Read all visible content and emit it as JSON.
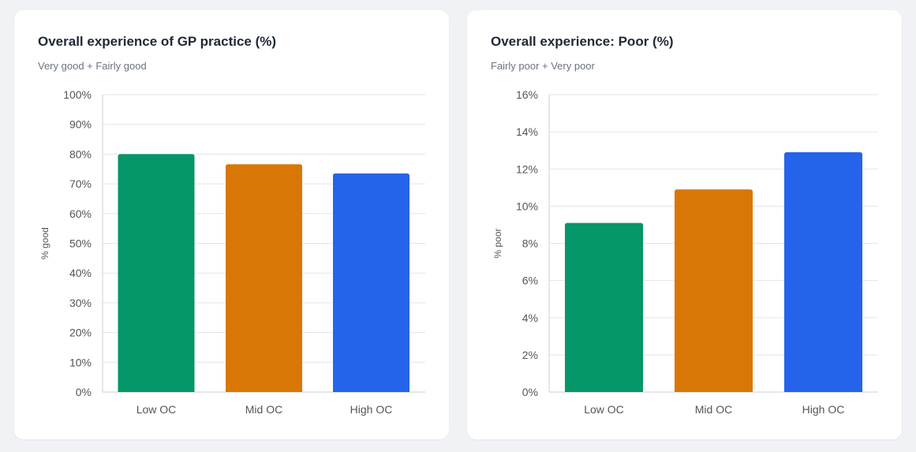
{
  "chart_data": [
    {
      "type": "bar",
      "title": "Overall experience of GP practice (%)",
      "subtitle": "Very good + Fairly good",
      "xlabel": "",
      "ylabel": "% good",
      "categories": [
        "Low OC",
        "Mid OC",
        "High OC"
      ],
      "values": [
        80,
        76.6,
        73.5
      ],
      "colors": [
        "#059669",
        "#d97706",
        "#2563eb"
      ],
      "ylim": [
        0,
        100
      ],
      "yticks": [
        0,
        10,
        20,
        30,
        40,
        50,
        60,
        70,
        80,
        90,
        100
      ],
      "tick_suffix": "%",
      "grid": true,
      "legend": "none"
    },
    {
      "type": "bar",
      "title": "Overall experience: Poor (%)",
      "subtitle": "Fairly poor + Very poor",
      "xlabel": "",
      "ylabel": "% poor",
      "categories": [
        "Low OC",
        "Mid OC",
        "High OC"
      ],
      "values": [
        9.1,
        10.9,
        12.9
      ],
      "colors": [
        "#059669",
        "#d97706",
        "#2563eb"
      ],
      "ylim": [
        0,
        16
      ],
      "yticks": [
        0,
        2,
        4,
        6,
        8,
        10,
        12,
        14,
        16
      ],
      "tick_suffix": "%",
      "grid": true,
      "legend": "none"
    }
  ]
}
